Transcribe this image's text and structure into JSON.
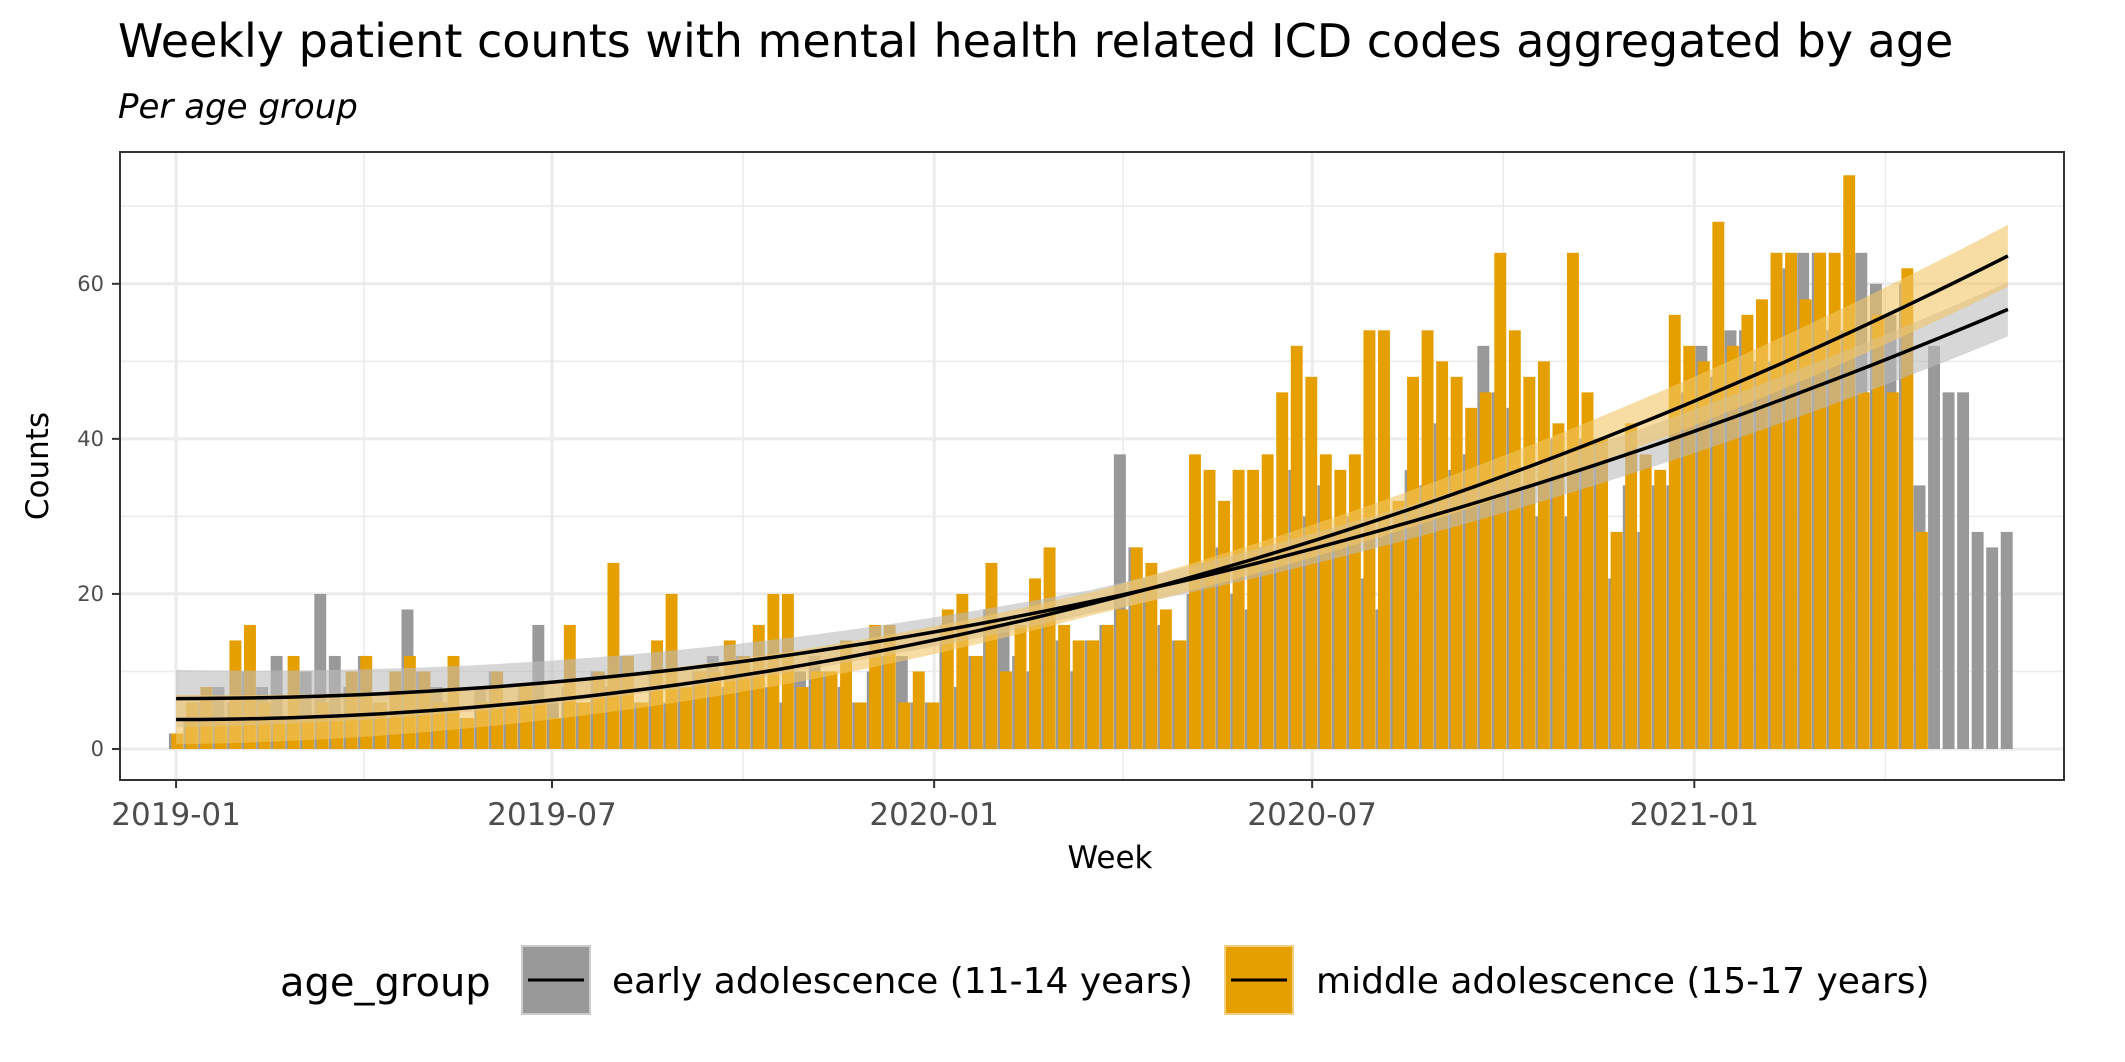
{
  "chart_data": {
    "type": "bar",
    "title": "Weekly patient counts with mental health related ICD codes aggregated by age",
    "subtitle": "Per age group",
    "xlabel": "Week",
    "ylabel": "Counts",
    "x_ticks": [
      "2019-01",
      "2019-07",
      "2020-01",
      "2020-07",
      "2021-01"
    ],
    "x_tick_dates": [
      "2019-01-01",
      "2019-07-01",
      "2020-01-01",
      "2020-07-01",
      "2021-01-01"
    ],
    "y_ticks": [
      0,
      20,
      40,
      60
    ],
    "ylim": [
      -4,
      77
    ],
    "xlim": [
      "2018-12-05",
      "2021-06-28"
    ],
    "grid": true,
    "legend": {
      "title": "age_group",
      "position": "bottom",
      "entries": [
        {
          "label": "early adolescence (11-14 years)",
          "color": "#999999"
        },
        {
          "label": "middle adolescence (15-17 years)",
          "color": "#E69F00"
        }
      ]
    },
    "colors": {
      "early": "#999999",
      "middle": "#E69F00",
      "trend": "#000000",
      "band_early": "#bdbdbd",
      "band_middle": "#f2c766"
    },
    "weeks_start": "2019-01-01",
    "weeks_step_days": 7,
    "series": [
      {
        "name": "early adolescence (11-14 years)",
        "values": [
          2,
          4,
          6,
          8,
          6,
          10,
          8,
          12,
          4,
          10,
          20,
          12,
          8,
          12,
          6,
          4,
          18,
          10,
          8,
          6,
          4,
          8,
          10,
          6,
          8,
          16,
          6,
          8,
          6,
          10,
          8,
          12,
          6,
          10,
          6,
          8,
          10,
          12,
          8,
          12,
          10,
          8,
          6,
          10,
          12,
          10,
          8,
          6,
          10,
          12,
          12,
          6,
          6,
          16,
          8,
          12,
          18,
          16,
          12,
          10,
          18,
          14,
          10,
          14,
          16,
          38,
          26,
          22,
          16,
          14,
          20,
          24,
          26,
          20,
          18,
          26,
          24,
          36,
          30,
          34,
          28,
          30,
          22,
          18,
          28,
          36,
          34,
          42,
          36,
          38,
          52,
          46,
          44,
          34,
          30,
          40,
          30,
          40,
          40,
          22,
          34,
          28,
          34,
          34,
          46,
          52,
          48,
          54,
          54,
          50,
          50,
          62,
          64,
          64,
          54,
          54,
          64,
          60,
          56,
          60,
          34,
          52,
          46,
          46,
          28,
          26,
          28
        ]
      },
      {
        "name": "middle adolescence (15-17 years)",
        "values": [
          2,
          6,
          8,
          4,
          14,
          16,
          6,
          4,
          12,
          4,
          6,
          4,
          10,
          12,
          6,
          10,
          12,
          10,
          6,
          12,
          4,
          6,
          10,
          6,
          8,
          6,
          4,
          16,
          6,
          10,
          24,
          12,
          6,
          14,
          20,
          8,
          10,
          10,
          14,
          12,
          16,
          20,
          20,
          8,
          10,
          10,
          14,
          6,
          16,
          16,
          6,
          10,
          6,
          18,
          20,
          12,
          24,
          10,
          16,
          22,
          26,
          16,
          14,
          14,
          16,
          18,
          26,
          24,
          18,
          14,
          38,
          36,
          32,
          36,
          36,
          38,
          46,
          52,
          48,
          38,
          36,
          38,
          54,
          54,
          32,
          48,
          54,
          50,
          48,
          44,
          46,
          64,
          54,
          48,
          50,
          42,
          64,
          46,
          40,
          28,
          42,
          38,
          36,
          56,
          52,
          50,
          68,
          52,
          56,
          58,
          64,
          64,
          58,
          64,
          64,
          74,
          46,
          56,
          46,
          62,
          28
        ]
      }
    ],
    "trend_lines": [
      {
        "series": "early adolescence (11-14 years)",
        "y_start": 6.5,
        "y_end": 56.7,
        "band_halfwidth_start": 3.7,
        "band_halfwidth_mid": 1.5,
        "band_halfwidth_end": 3.5
      },
      {
        "series": "middle adolescence (15-17 years)",
        "y_start": 3.8,
        "y_end": 63.6,
        "band_halfwidth_start": 3.2,
        "band_halfwidth_mid": 1.5,
        "band_halfwidth_end": 4.0
      }
    ]
  }
}
